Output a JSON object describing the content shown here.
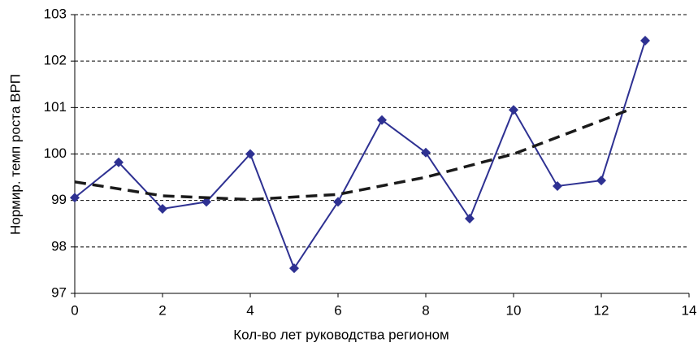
{
  "chart_data": {
    "type": "line",
    "x_label": "Кол-во лет руководства регионом",
    "y_label": "Нормир. темп роста ВРП",
    "series": [
      {
        "color": "#2e3192",
        "style": "solid",
        "marker": "diamond",
        "x": [
          0,
          1,
          2,
          3,
          4,
          5,
          6,
          7,
          8,
          9,
          10,
          11,
          12,
          13
        ],
        "values": [
          99.06,
          99.82,
          98.82,
          98.97,
          100.0,
          97.54,
          98.97,
          100.73,
          100.03,
          98.61,
          100.95,
          99.31,
          99.43,
          102.44
        ]
      },
      {
        "color": "#1a1a1a",
        "style": "dashed",
        "marker": "none",
        "x": [
          0,
          2,
          4,
          6,
          8,
          10,
          12,
          12.6
        ],
        "values": [
          99.4,
          99.1,
          99.02,
          99.13,
          99.5,
          100.0,
          100.72,
          100.94
        ]
      }
    ],
    "xlim": [
      0,
      14
    ],
    "xticks": [
      0,
      2,
      4,
      6,
      8,
      10,
      12,
      14
    ],
    "ylim": [
      97,
      103
    ],
    "yticks": [
      97,
      98,
      99,
      100,
      101,
      102,
      103
    ],
    "grid": true
  }
}
